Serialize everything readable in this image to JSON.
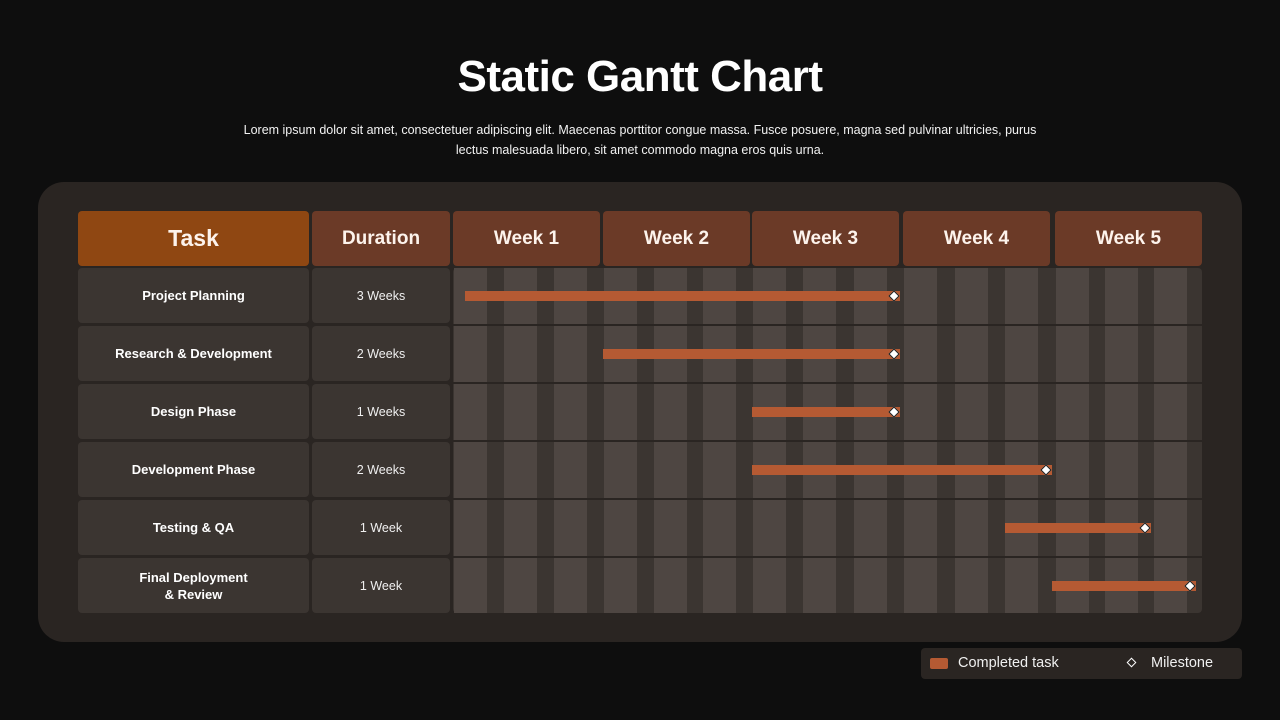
{
  "title": "Static Gantt Chart",
  "subtitle": "Lorem ipsum dolor sit amet, consectetuer adipiscing elit. Maecenas porttitor congue massa. Fusce posuere, magna sed pulvinar ultricies, purus lectus malesuada libero, sit amet commodo magna eros quis urna.",
  "colors": {
    "background": "#0e0e0e",
    "panel": "#2a2522",
    "task_header": "#8f4712",
    "column_header": "#6b3a27",
    "cell": "#3b3531",
    "stripe": "#4e4642",
    "bar": "#b55a33",
    "milestone": "#ffffff"
  },
  "chart_data": {
    "type": "gantt",
    "title": "Static Gantt Chart",
    "columns": {
      "task": "Task",
      "duration": "Duration"
    },
    "weeks": [
      "Week 1",
      "Week 2",
      "Week 3",
      "Week 4",
      "Week 5"
    ],
    "subdivisions_per_week": 3,
    "tasks": [
      {
        "name": "Project Planning",
        "duration": "3 Weeks",
        "start_week": 0.08,
        "end_week": 2.98,
        "milestone_week": 2.98
      },
      {
        "name": "Research & Development",
        "duration": "2 Weeks",
        "start_week": 1.0,
        "end_week": 2.98,
        "milestone_week": 2.98
      },
      {
        "name": "Design Phase",
        "duration": "1 Weeks",
        "start_week": 2.0,
        "end_week": 2.98,
        "milestone_week": 2.98
      },
      {
        "name": "Development Phase",
        "duration": "2 Weeks",
        "start_week": 2.0,
        "end_week": 3.98,
        "milestone_week": 3.98
      },
      {
        "name": "Testing & QA",
        "duration": "1 Week",
        "start_week": 3.67,
        "end_week": 4.65,
        "milestone_week": 4.65
      },
      {
        "name": "Final Deployment\n& Review",
        "duration": "1 Week",
        "start_week": 3.98,
        "end_week": 4.96,
        "milestone_week": 4.96
      }
    ],
    "legend": [
      {
        "label": "Completed task",
        "marker": "bar-swatch"
      },
      {
        "label": "Milestone",
        "marker": "diamond-icon"
      }
    ],
    "legend_position": "bottom-right"
  }
}
